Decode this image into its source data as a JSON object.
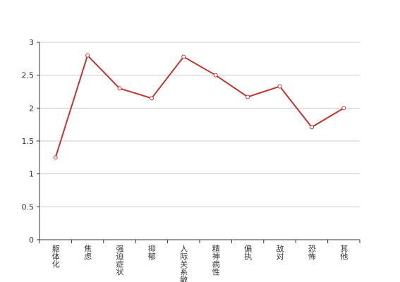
{
  "chart_data": {
    "type": "line",
    "categories": [
      "躯体化",
      "焦虑",
      "强迫症状",
      "抑郁",
      "人际关系敏感",
      "精神病性",
      "偏执",
      "敌对",
      "恐怖",
      "其他"
    ],
    "values": [
      1.25,
      2.8,
      2.3,
      2.15,
      2.78,
      2.5,
      2.17,
      2.33,
      1.71,
      2.0
    ],
    "color": "#c23531",
    "ylim": [
      0,
      3
    ],
    "yticks": [
      0,
      0.5,
      1,
      1.5,
      2,
      2.5,
      3
    ],
    "grid": true
  }
}
